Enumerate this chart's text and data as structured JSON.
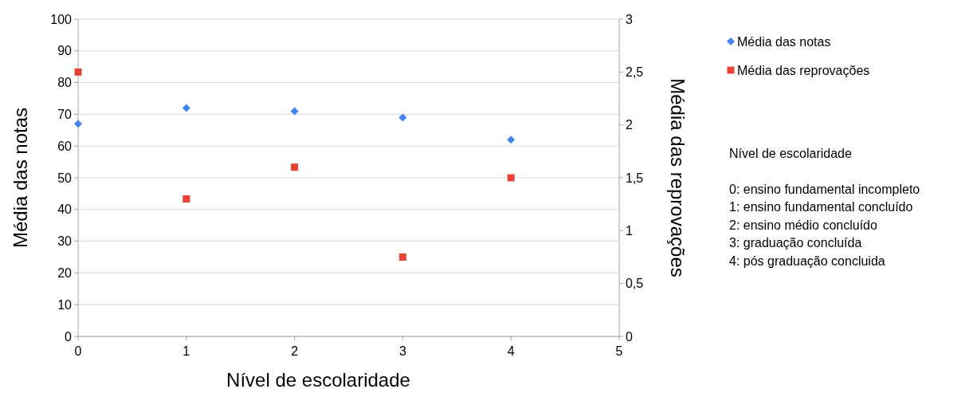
{
  "chart_data": {
    "type": "scatter",
    "xlabel": "Nível de escolaridade",
    "ylabel": "Média das notas",
    "y2label": "Média das reprovações",
    "xlim": [
      0,
      5
    ],
    "xticks": [
      0,
      1,
      2,
      3,
      4,
      5
    ],
    "ylim": [
      0,
      100
    ],
    "yticks": [
      0,
      10,
      20,
      30,
      40,
      50,
      60,
      70,
      80,
      90,
      100
    ],
    "y2lim": [
      0,
      3
    ],
    "y2ticks": [
      0,
      {
        "value": 0.5,
        "label": "0,5"
      },
      1,
      {
        "value": 1.5,
        "label": "1,5"
      },
      2,
      {
        "value": 2.5,
        "label": "2,5"
      },
      3
    ],
    "grid": "y",
    "legend": "top right",
    "series": [
      {
        "name": "Média das notas",
        "color": "#4285f4",
        "marker": "diamond",
        "x": [
          0,
          1,
          2,
          3,
          4
        ],
        "values": [
          67,
          72,
          71,
          69,
          62
        ]
      },
      {
        "name": "Média das reprovações",
        "color": "#ea4335",
        "marker": "square",
        "axis": "y2",
        "x": [
          0,
          1,
          2,
          3,
          4
        ],
        "values": [
          2.5,
          1.3,
          1.6,
          0.75,
          1.5
        ]
      }
    ],
    "annotations": [
      "Nível de escolaridade",
      "0: ensino fundamental  incompleto",
      "1: ensino fundamental  concluído",
      "2: ensino médio concluído",
      "3: graduação concluída",
      "4: pós graduação concluida"
    ]
  }
}
